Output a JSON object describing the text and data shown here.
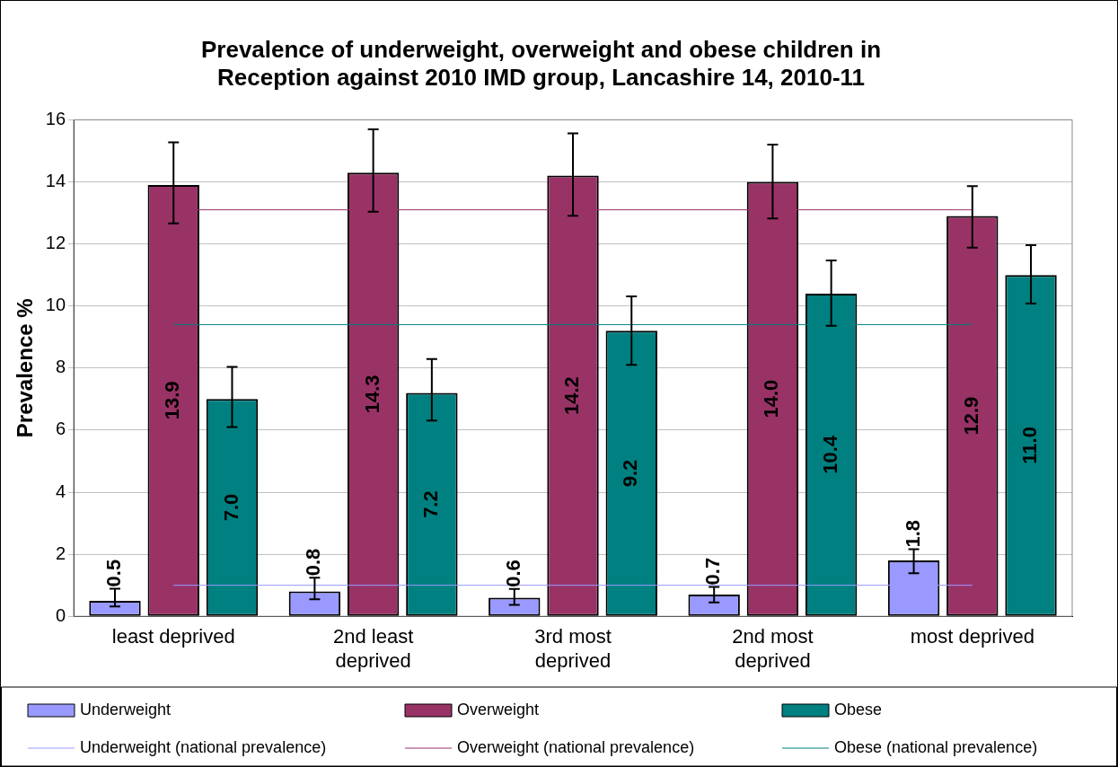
{
  "chart_data": {
    "type": "bar",
    "title": "Prevalence of underweight, overweight and obese children in Reception against 2010 IMD group, Lancashire 14, 2010-11",
    "ylabel": "Prevalence %",
    "categories": [
      "least deprived",
      "2nd least deprived",
      "3rd most deprived",
      "2nd most deprived",
      "most deprived"
    ],
    "series": [
      {
        "name": "Underweight",
        "color": "#9999ff",
        "values": [
          0.5,
          0.8,
          0.6,
          0.7,
          1.8
        ],
        "errors": [
          [
            0.32,
            0.89
          ],
          [
            0.55,
            1.24
          ],
          [
            0.37,
            0.88
          ],
          [
            0.45,
            0.95
          ],
          [
            1.39,
            2.16
          ]
        ],
        "value_labels": [
          "0.5",
          "0.8",
          "0.6",
          "0.7",
          "1.8"
        ]
      },
      {
        "name": "Overweight",
        "color": "#993366",
        "values": [
          13.9,
          14.3,
          14.2,
          14.0,
          12.9
        ],
        "errors": [
          [
            12.66,
            15.27
          ],
          [
            13.04,
            15.69
          ],
          [
            12.91,
            15.56
          ],
          [
            12.82,
            15.2
          ],
          [
            11.88,
            13.86
          ]
        ],
        "value_labels": [
          "13.9",
          "14.3",
          "14.2",
          "14.0",
          "12.9"
        ]
      },
      {
        "name": "Obese",
        "color": "#008080",
        "values": [
          7.0,
          7.2,
          9.2,
          10.4,
          11.0
        ],
        "errors": [
          [
            6.1,
            8.04
          ],
          [
            6.31,
            8.29
          ],
          [
            8.1,
            10.31
          ],
          [
            9.36,
            11.47
          ],
          [
            10.08,
            11.96
          ]
        ],
        "value_labels": [
          "7.0",
          "7.2",
          "9.2",
          "10.4",
          "11.0"
        ]
      }
    ],
    "ref_lines": [
      {
        "axis": "y",
        "value": 1.0,
        "label": "Underweight (national prevalence)",
        "color": "#9999ff"
      },
      {
        "axis": "y",
        "value": 13.1,
        "label": "Overweight (national prevalence)",
        "color": "#993366"
      },
      {
        "axis": "y",
        "value": 9.4,
        "label": "Obese (national prevalence)",
        "color": "#008080"
      }
    ],
    "ylim": [
      0,
      16
    ],
    "yticks": [
      0,
      2,
      4,
      6,
      8,
      10,
      12,
      14,
      16
    ],
    "grid": "y",
    "legend": "bottom"
  }
}
